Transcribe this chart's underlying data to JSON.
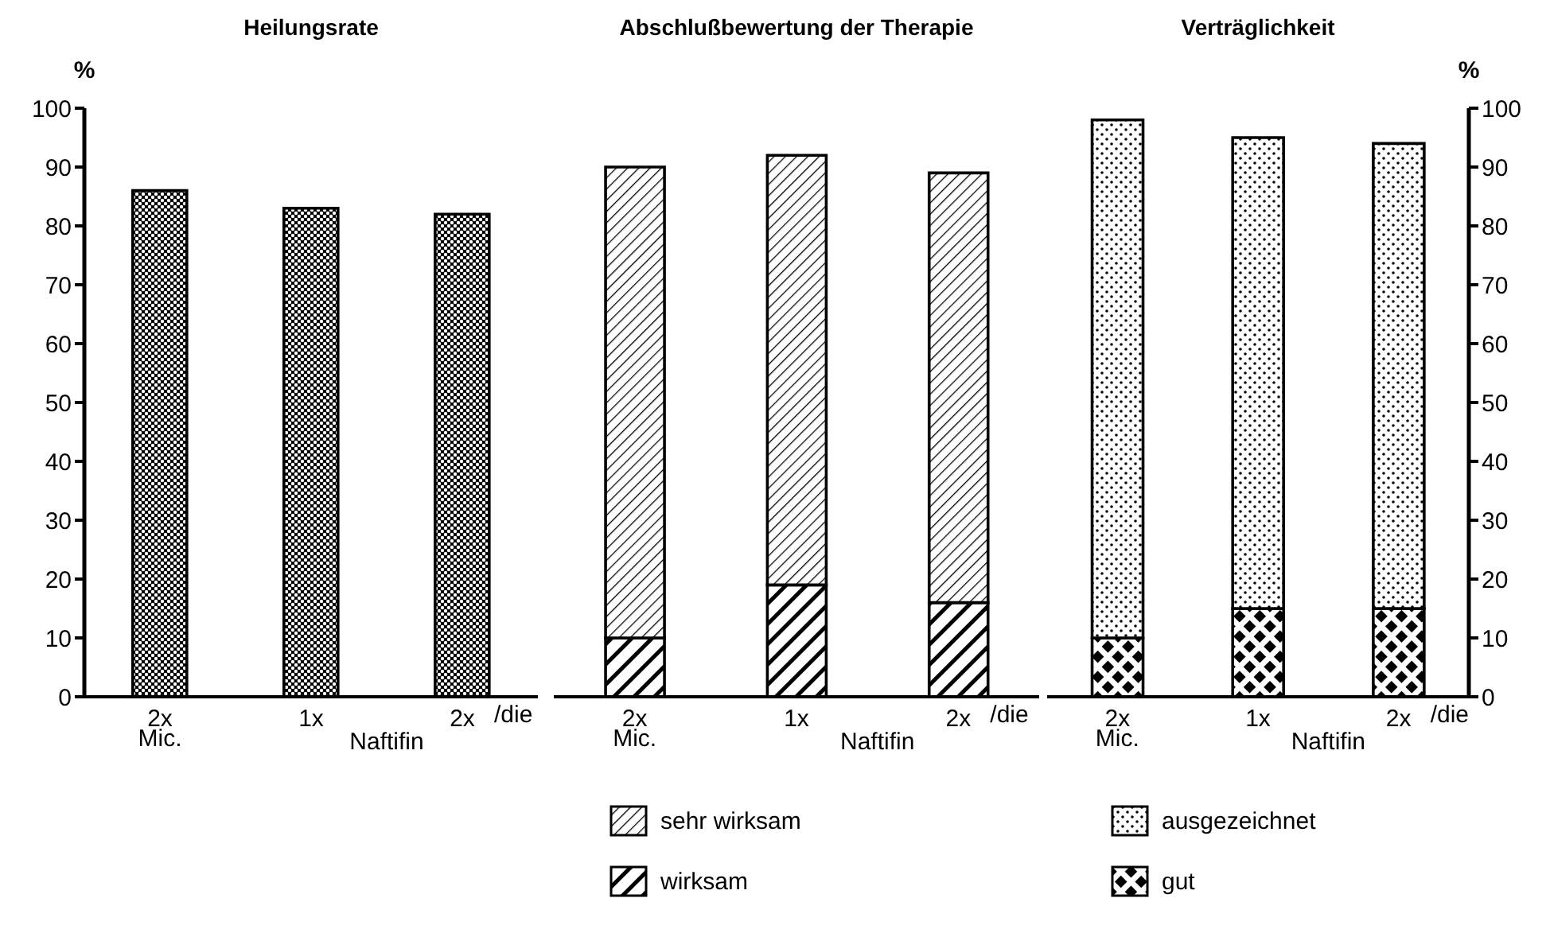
{
  "chart_data": [
    {
      "type": "bar",
      "title": "Heilungsrate",
      "ylabel": "%",
      "categories": [
        "2x",
        "1x",
        "2x"
      ],
      "values": [
        86,
        83,
        82
      ],
      "color": "#000000",
      "ylim": [
        0,
        100
      ],
      "yticks": [
        0,
        10,
        20,
        30,
        40,
        50,
        60,
        70,
        80,
        90,
        100
      ],
      "grid": false,
      "legend": false,
      "annotations": [
        "Mic.",
        "Naftifin",
        "/die"
      ]
    },
    {
      "type": "bar",
      "title": "Abschlußbewertung der Therapie",
      "categories": [
        "2x",
        "1x",
        "2x"
      ],
      "stacked": true,
      "series": [
        {
          "name": "wirksam",
          "color": "#000000",
          "values": [
            10,
            19,
            16
          ]
        },
        {
          "name": "sehr wirksam",
          "color": "#000000",
          "values": [
            80,
            73,
            73
          ]
        }
      ],
      "ylim": [
        0,
        100
      ],
      "tick_labels": "x",
      "grid": false,
      "legend": "bottom",
      "annotations": [
        "Mic.",
        "Naftifin",
        "/die"
      ]
    },
    {
      "type": "bar",
      "title": "Verträglichkeit",
      "y2label": "%",
      "categories": [
        "2x",
        "1x",
        "2x"
      ],
      "stacked": true,
      "series": [
        {
          "name": "gut",
          "color": "#000000",
          "values": [
            10,
            15,
            15
          ],
          "axis": "y2"
        },
        {
          "name": "ausgezeichnet",
          "color": "#000000",
          "values": [
            88,
            80,
            79
          ],
          "axis": "y2"
        }
      ],
      "y2lim": [
        0,
        100
      ],
      "y2ticks": [
        0,
        10,
        20,
        30,
        40,
        50,
        60,
        70,
        80,
        90,
        100
      ],
      "grid": false,
      "legend": "bottom",
      "annotations": [
        "Mic.",
        "Naftifin",
        "/die"
      ]
    }
  ]
}
